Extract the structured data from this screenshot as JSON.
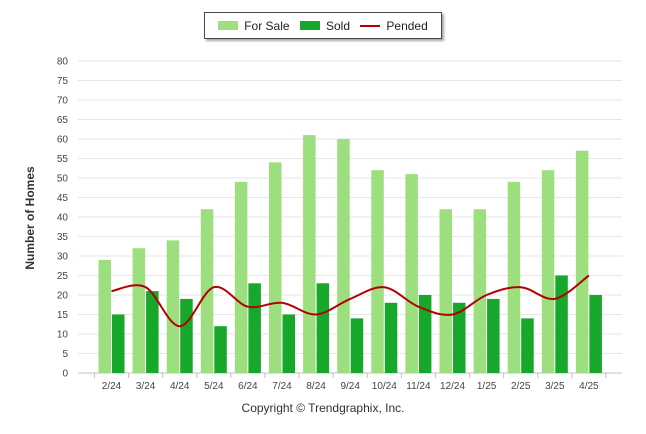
{
  "chart_data": {
    "type": "bar",
    "title": "",
    "ylabel": "Number of Homes",
    "xlabel": "",
    "ylim": [
      0,
      80
    ],
    "yticks": [
      0,
      5,
      10,
      15,
      20,
      25,
      30,
      35,
      40,
      45,
      50,
      55,
      60,
      65,
      70,
      75,
      80
    ],
    "grid": true,
    "legend_position": "top-center",
    "categories": [
      "2/24",
      "3/24",
      "4/24",
      "5/24",
      "6/24",
      "7/24",
      "8/24",
      "9/24",
      "10/24",
      "11/24",
      "12/24",
      "1/25",
      "2/25",
      "3/25",
      "4/25"
    ],
    "series": [
      {
        "name": "For Sale",
        "kind": "bar",
        "color": "#9ddf7f",
        "values": [
          29,
          32,
          34,
          42,
          49,
          54,
          61,
          60,
          52,
          51,
          42,
          42,
          49,
          52,
          57
        ]
      },
      {
        "name": "Sold",
        "kind": "bar",
        "color": "#17a72b",
        "values": [
          15,
          21,
          19,
          12,
          23,
          15,
          23,
          14,
          18,
          20,
          18,
          19,
          14,
          25,
          20
        ]
      },
      {
        "name": "Pended",
        "kind": "line",
        "color": "#b30000",
        "values": [
          21,
          22,
          12,
          22,
          17,
          18,
          15,
          19,
          22,
          17,
          15,
          20,
          22,
          19,
          25
        ]
      }
    ]
  },
  "footer": {
    "copyright": "Copyright © Trendgraphix, Inc."
  }
}
